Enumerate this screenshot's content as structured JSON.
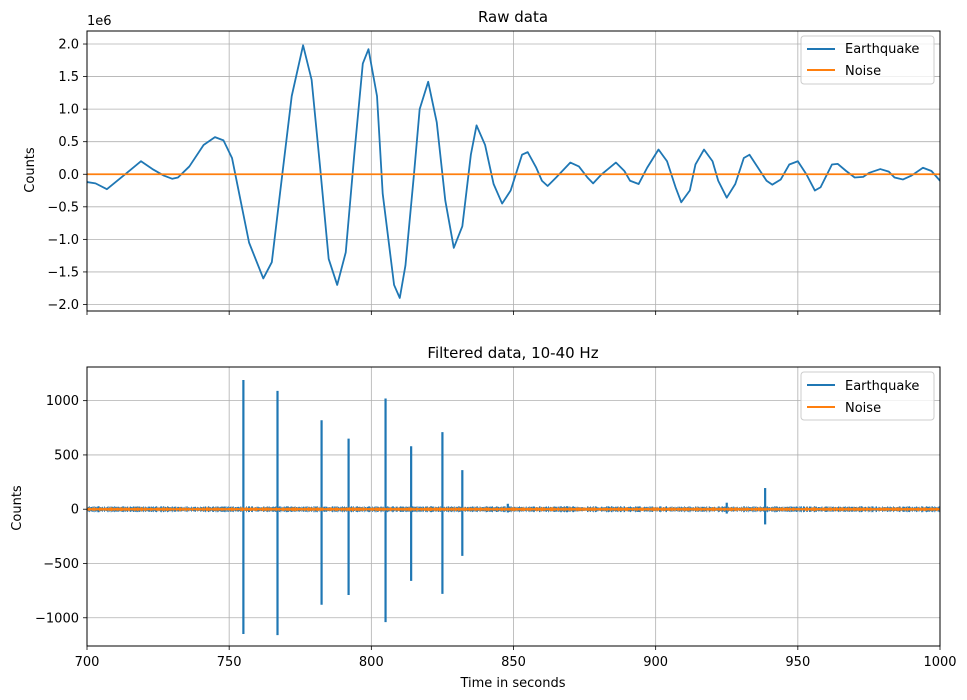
{
  "chart_data": [
    {
      "type": "line",
      "title": "Raw data",
      "xlabel": "",
      "ylabel": "Counts",
      "offset_text": "1e6",
      "xlim": [
        700,
        1000
      ],
      "ylim": [
        -2.1,
        2.2
      ],
      "x_ticks": [
        700,
        750,
        800,
        850,
        900,
        950,
        1000
      ],
      "x_tick_labels_shown": false,
      "y_ticks": [
        -2.0,
        -1.5,
        -1.0,
        -0.5,
        0.0,
        0.5,
        1.0,
        1.5,
        2.0
      ],
      "y_tick_labels": [
        "−2.0",
        "−1.5",
        "−1.0",
        "−0.5",
        "0.0",
        "0.5",
        "1.0",
        "1.5",
        "2.0"
      ],
      "grid": true,
      "legend_position": "top-right",
      "series": [
        {
          "name": "Earthquake",
          "color": "#1f77b4",
          "points": [
            [
              700,
              -0.12
            ],
            [
              703,
              -0.14
            ],
            [
              707,
              -0.23
            ],
            [
              712,
              -0.05
            ],
            [
              714,
              0.02
            ],
            [
              719,
              0.2
            ],
            [
              723,
              0.08
            ],
            [
              727,
              -0.02
            ],
            [
              730,
              -0.07
            ],
            [
              732,
              -0.05
            ],
            [
              736,
              0.12
            ],
            [
              741,
              0.45
            ],
            [
              745,
              0.57
            ],
            [
              748,
              0.52
            ],
            [
              751,
              0.25
            ],
            [
              754,
              -0.4
            ],
            [
              757,
              -1.05
            ],
            [
              762,
              -1.6
            ],
            [
              765,
              -1.35
            ],
            [
              768,
              -0.25
            ],
            [
              772,
              1.2
            ],
            [
              776,
              1.98
            ],
            [
              779,
              1.45
            ],
            [
              782,
              0.1
            ],
            [
              785,
              -1.3
            ],
            [
              788,
              -1.7
            ],
            [
              791,
              -1.2
            ],
            [
              794,
              0.3
            ],
            [
              797,
              1.7
            ],
            [
              799,
              1.92
            ],
            [
              802,
              1.2
            ],
            [
              804,
              -0.3
            ],
            [
              808,
              -1.7
            ],
            [
              810,
              -1.9
            ],
            [
              812,
              -1.4
            ],
            [
              815,
              0.0
            ],
            [
              817,
              1.0
            ],
            [
              820,
              1.42
            ],
            [
              823,
              0.8
            ],
            [
              826,
              -0.4
            ],
            [
              829,
              -1.13
            ],
            [
              832,
              -0.8
            ],
            [
              835,
              0.3
            ],
            [
              837,
              0.75
            ],
            [
              840,
              0.45
            ],
            [
              843,
              -0.15
            ],
            [
              846,
              -0.45
            ],
            [
              849,
              -0.25
            ],
            [
              853,
              0.3
            ],
            [
              855,
              0.34
            ],
            [
              858,
              0.1
            ],
            [
              860,
              -0.1
            ],
            [
              862,
              -0.18
            ],
            [
              865,
              -0.05
            ],
            [
              870,
              0.18
            ],
            [
              873,
              0.12
            ],
            [
              876,
              -0.05
            ],
            [
              878,
              -0.14
            ],
            [
              881,
              0.0
            ],
            [
              886,
              0.18
            ],
            [
              889,
              0.05
            ],
            [
              891,
              -0.1
            ],
            [
              894,
              -0.15
            ],
            [
              897,
              0.1
            ],
            [
              901,
              0.38
            ],
            [
              904,
              0.2
            ],
            [
              907,
              -0.2
            ],
            [
              909,
              -0.43
            ],
            [
              912,
              -0.25
            ],
            [
              914,
              0.15
            ],
            [
              917,
              0.38
            ],
            [
              920,
              0.2
            ],
            [
              922,
              -0.1
            ],
            [
              925,
              -0.36
            ],
            [
              928,
              -0.15
            ],
            [
              931,
              0.25
            ],
            [
              933,
              0.3
            ],
            [
              936,
              0.1
            ],
            [
              939,
              -0.1
            ],
            [
              941,
              -0.16
            ],
            [
              944,
              -0.08
            ],
            [
              947,
              0.15
            ],
            [
              950,
              0.2
            ],
            [
              953,
              0.0
            ],
            [
              956,
              -0.25
            ],
            [
              958,
              -0.2
            ],
            [
              962,
              0.15
            ],
            [
              964,
              0.16
            ],
            [
              967,
              0.05
            ],
            [
              970,
              -0.05
            ],
            [
              973,
              -0.04
            ],
            [
              975,
              0.02
            ],
            [
              979,
              0.08
            ],
            [
              982,
              0.04
            ],
            [
              984,
              -0.05
            ],
            [
              987,
              -0.08
            ],
            [
              990,
              -0.02
            ],
            [
              994,
              0.1
            ],
            [
              997,
              0.05
            ],
            [
              1000,
              -0.1
            ]
          ]
        },
        {
          "name": "Noise",
          "color": "#ff7f0e",
          "points": [
            [
              700,
              0.0
            ],
            [
              1000,
              0.0
            ]
          ]
        }
      ]
    },
    {
      "type": "line",
      "title": "Filtered data, 10-40 Hz",
      "xlabel": "Time in seconds",
      "ylabel": "Counts",
      "xlim": [
        700,
        1000
      ],
      "ylim": [
        -1260,
        1310
      ],
      "x_ticks": [
        700,
        750,
        800,
        850,
        900,
        950,
        1000
      ],
      "x_tick_labels": [
        "700",
        "750",
        "800",
        "850",
        "900",
        "950",
        "1000"
      ],
      "y_ticks": [
        -1000,
        -500,
        0,
        500,
        1000
      ],
      "y_tick_labels": [
        "−1000",
        "−500",
        "0",
        "500",
        "1000"
      ],
      "grid": true,
      "legend_position": "top-right",
      "series": [
        {
          "name": "Earthquake",
          "color": "#1f77b4",
          "background_noise_amplitude": 28,
          "spikes": [
            {
              "x": 755,
              "max": 1190,
              "min": -1150
            },
            {
              "x": 767,
              "max": 1090,
              "min": -1160
            },
            {
              "x": 782.5,
              "max": 820,
              "min": -880
            },
            {
              "x": 792,
              "max": 650,
              "min": -790
            },
            {
              "x": 805,
              "max": 1020,
              "min": -1040
            },
            {
              "x": 814,
              "max": 580,
              "min": -660
            },
            {
              "x": 825,
              "max": 710,
              "min": -780
            },
            {
              "x": 832,
              "max": 360,
              "min": -430
            },
            {
              "x": 848,
              "max": 50,
              "min": -30
            },
            {
              "x": 925,
              "max": 60,
              "min": -40
            },
            {
              "x": 938.5,
              "max": 195,
              "min": -140
            }
          ]
        },
        {
          "name": "Noise",
          "color": "#ff7f0e",
          "background_noise_amplitude": 18
        }
      ]
    }
  ]
}
